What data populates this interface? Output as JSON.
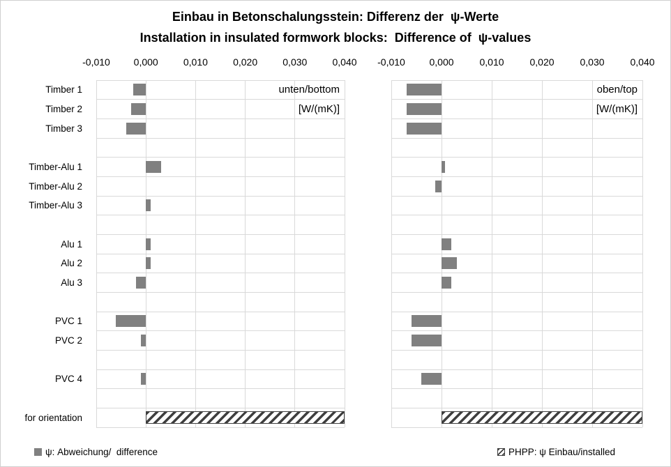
{
  "title": {
    "line1": "Einbau in Betonschalungsstein: Differenz der  ψ-Werte",
    "line2": "Installation in insulated formwork blocks:  Difference of  ψ-values"
  },
  "colors": {
    "bar": "#808080",
    "grid": "#d9d9d9",
    "hatch_stripe": "#3f3f3f",
    "text": "#000000"
  },
  "legend": {
    "difference": {
      "label": "ψ: Abweichung/  difference",
      "swatch": "solid-gray-square"
    },
    "phpp": {
      "label": "PHPP: ψ Einbau/installed",
      "swatch": "hatched-square"
    }
  },
  "chart_data": [
    {
      "type": "bar",
      "orientation": "horizontal",
      "panel_label": "unten/bottom",
      "unit_label": "[W/(mK)]",
      "xlabel": "",
      "ylabel": "",
      "xlim": [
        -0.01,
        0.04
      ],
      "grid": true,
      "show_category_labels": true,
      "xticks": [
        {
          "value": -0.01,
          "label": "-0,010"
        },
        {
          "value": 0.0,
          "label": "0,000"
        },
        {
          "value": 0.01,
          "label": "0,010"
        },
        {
          "value": 0.02,
          "label": "0,020"
        },
        {
          "value": 0.03,
          "label": "0,030"
        },
        {
          "value": 0.04,
          "label": "0,040"
        }
      ],
      "rows": [
        {
          "label": "Timber 1",
          "value": -0.0025,
          "series": "diff"
        },
        {
          "label": "Timber 2",
          "value": -0.003,
          "series": "diff"
        },
        {
          "label": "Timber 3",
          "value": -0.004,
          "series": "diff"
        },
        {
          "label": "",
          "value": null,
          "series": null
        },
        {
          "label": "Timber-Alu 1",
          "value": 0.003,
          "series": "diff"
        },
        {
          "label": "Timber-Alu 2",
          "value": 0,
          "series": "diff"
        },
        {
          "label": "Timber-Alu 3",
          "value": 0.001,
          "series": "diff"
        },
        {
          "label": "",
          "value": null,
          "series": null
        },
        {
          "label": "Alu 1",
          "value": 0.001,
          "series": "diff"
        },
        {
          "label": "Alu 2",
          "value": 0.001,
          "series": "diff"
        },
        {
          "label": "Alu 3",
          "value": -0.002,
          "series": "diff"
        },
        {
          "label": "",
          "value": null,
          "series": null
        },
        {
          "label": "PVC 1",
          "value": -0.006,
          "series": "diff"
        },
        {
          "label": "PVC 2",
          "value": -0.001,
          "series": "diff"
        },
        {
          "label": "",
          "value": null,
          "series": null
        },
        {
          "label": "PVC 4",
          "value": -0.001,
          "series": "diff"
        },
        {
          "label": "",
          "value": null,
          "series": null
        },
        {
          "label": "for orientation",
          "value": 0.04,
          "series": "phpp"
        }
      ]
    },
    {
      "type": "bar",
      "orientation": "horizontal",
      "panel_label": "oben/top",
      "unit_label": "[W/(mK)]",
      "xlabel": "",
      "ylabel": "",
      "xlim": [
        -0.01,
        0.04
      ],
      "grid": true,
      "show_category_labels": false,
      "xticks": [
        {
          "value": -0.01,
          "label": "-0,010"
        },
        {
          "value": 0.0,
          "label": "0,000"
        },
        {
          "value": 0.01,
          "label": "0,010"
        },
        {
          "value": 0.02,
          "label": "0,020"
        },
        {
          "value": 0.03,
          "label": "0,030"
        },
        {
          "value": 0.04,
          "label": "0,040"
        }
      ],
      "rows": [
        {
          "label": "Timber 1",
          "value": -0.007,
          "series": "diff"
        },
        {
          "label": "Timber 2",
          "value": -0.007,
          "series": "diff"
        },
        {
          "label": "Timber 3",
          "value": -0.007,
          "series": "diff"
        },
        {
          "label": "",
          "value": null,
          "series": null
        },
        {
          "label": "Timber-Alu 1",
          "value": 0.0007,
          "series": "diff"
        },
        {
          "label": "Timber-Alu 2",
          "value": -0.0012,
          "series": "diff"
        },
        {
          "label": "Timber-Alu 3",
          "value": 0,
          "series": "diff"
        },
        {
          "label": "",
          "value": null,
          "series": null
        },
        {
          "label": "Alu 1",
          "value": 0.002,
          "series": "diff"
        },
        {
          "label": "Alu 2",
          "value": 0.003,
          "series": "diff"
        },
        {
          "label": "Alu 3",
          "value": 0.002,
          "series": "diff"
        },
        {
          "label": "",
          "value": null,
          "series": null
        },
        {
          "label": "PVC 1",
          "value": -0.006,
          "series": "diff"
        },
        {
          "label": "PVC 2",
          "value": -0.006,
          "series": "diff"
        },
        {
          "label": "",
          "value": null,
          "series": null
        },
        {
          "label": "PVC 4",
          "value": -0.004,
          "series": "diff"
        },
        {
          "label": "",
          "value": null,
          "series": null
        },
        {
          "label": "for orientation",
          "value": 0.04,
          "series": "phpp"
        }
      ]
    }
  ]
}
